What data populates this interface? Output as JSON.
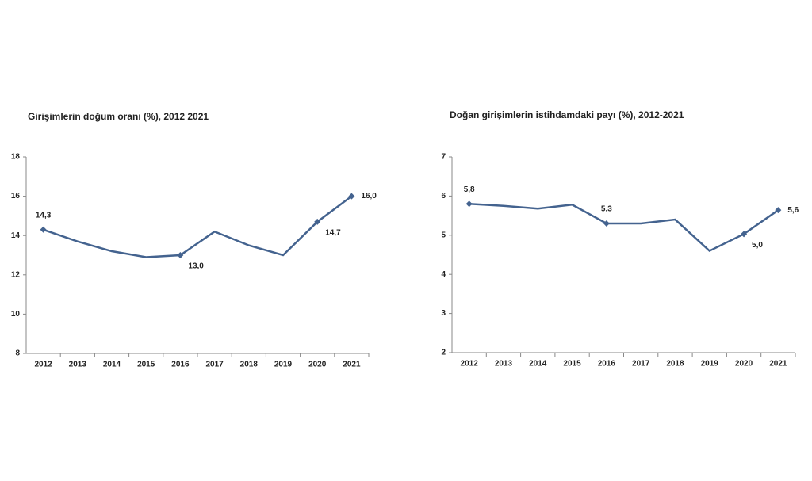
{
  "chart_data": [
    {
      "type": "line",
      "title": "Girişimlerin doğum oranı (%), 2012 2021",
      "categories": [
        "2012",
        "2013",
        "2014",
        "2015",
        "2016",
        "2017",
        "2018",
        "2019",
        "2020",
        "2021"
      ],
      "series": [
        {
          "color": "#44638f",
          "values": [
            14.3,
            13.7,
            13.2,
            12.9,
            13.0,
            14.2,
            13.5,
            13.0,
            14.7,
            16.0
          ],
          "value_labels": [
            "14,3",
            null,
            null,
            null,
            "13,0",
            null,
            null,
            null,
            "14,7",
            "16,0"
          ]
        }
      ],
      "ylim": [
        8,
        18
      ],
      "yticks": [
        8,
        10,
        12,
        14,
        16,
        18
      ],
      "grid": false
    },
    {
      "type": "line",
      "title": "Doğan girişimlerin istihdamdaki payı (%), 2012-2021",
      "categories": [
        "2012",
        "2013",
        "2014",
        "2015",
        "2016",
        "2017",
        "2018",
        "2019",
        "2020",
        "2021"
      ],
      "series": [
        {
          "color": "#44638f",
          "values": [
            5.8,
            5.75,
            5.68,
            5.78,
            5.3,
            5.3,
            5.4,
            4.6,
            5.03,
            5.64
          ],
          "value_labels": [
            "5,8",
            null,
            null,
            null,
            "5,3",
            null,
            null,
            null,
            "5,0",
            "5,6"
          ]
        }
      ],
      "ylim": [
        2,
        7
      ],
      "yticks": [
        2,
        3,
        4,
        5,
        6,
        7
      ],
      "grid": false
    }
  ]
}
